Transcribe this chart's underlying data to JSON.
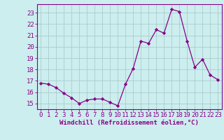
{
  "x": [
    0,
    1,
    2,
    3,
    4,
    5,
    6,
    7,
    8,
    9,
    10,
    11,
    12,
    13,
    14,
    15,
    16,
    17,
    18,
    19,
    20,
    21,
    22,
    23
  ],
  "y": [
    16.8,
    16.7,
    16.4,
    15.9,
    15.5,
    15.0,
    15.3,
    15.4,
    15.4,
    15.1,
    14.8,
    16.7,
    18.1,
    20.5,
    20.3,
    21.5,
    21.2,
    23.3,
    23.1,
    20.5,
    18.2,
    18.9,
    17.5,
    17.1
  ],
  "line_color": "#880088",
  "marker_color": "#880088",
  "bg_color": "#cceeee",
  "grid_color": "#aacccc",
  "xlabel": "Windchill (Refroidissement éolien,°C)",
  "xlim": [
    -0.5,
    23.5
  ],
  "ylim": [
    14.5,
    23.75
  ],
  "xticks": [
    0,
    1,
    2,
    3,
    4,
    5,
    6,
    7,
    8,
    9,
    10,
    11,
    12,
    13,
    14,
    15,
    16,
    17,
    18,
    19,
    20,
    21,
    22,
    23
  ],
  "yticks": [
    15,
    16,
    17,
    18,
    19,
    20,
    21,
    22,
    23
  ],
  "tick_fontsize": 6.5,
  "xlabel_fontsize": 6.5
}
